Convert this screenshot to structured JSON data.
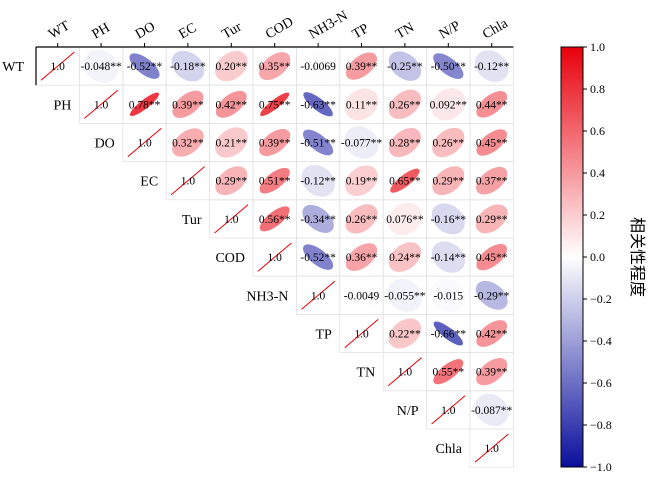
{
  "chart_data": {
    "type": "heatmap",
    "variables": [
      "WT",
      "PH",
      "DO",
      "EC",
      "Tur",
      "COD",
      "NH3-N",
      "TP",
      "TN",
      "N/P",
      "Chla"
    ],
    "matrix_upper": [
      [
        "1.0",
        "-0.048**",
        "-0.52**",
        "-0.18**",
        "0.20**",
        "0.35**",
        "-0.0069",
        "0.39**",
        "-0.25**",
        "-0.50**",
        "-0.12**"
      ],
      [
        "1.0",
        "0.78**",
        "0.39**",
        "0.42**",
        "0.75**",
        "-0.63**",
        "0.11**",
        "0.26**",
        "0.092**",
        "0.44**"
      ],
      [
        "1.0",
        "0.32**",
        "0.21**",
        "0.39**",
        "-0.51**",
        "-0.077**",
        "0.28**",
        "0.26**",
        "0.45**"
      ],
      [
        "1.0",
        "0.29**",
        "0.51**",
        "-0.12**",
        "0.19**",
        "0.65**",
        "0.29**",
        "0.37**"
      ],
      [
        "1.0",
        "0.56**",
        "-0.34**",
        "0.26**",
        "0.076**",
        "-0.16**",
        "0.29**"
      ],
      [
        "1.0",
        "-0.52**",
        "0.36**",
        "0.24**",
        "-0.14**",
        "0.45**"
      ],
      [
        "1.0",
        "-0.0049",
        "-0.055**",
        "-0.015",
        "-0.29**"
      ],
      [
        "1.0",
        "0.22**",
        "-0.66**",
        "0.42**"
      ],
      [
        "1.0",
        "0.55**",
        "0.39**"
      ],
      [
        "1.0",
        "-0.087**"
      ],
      [
        "1.0"
      ]
    ],
    "colorbar": {
      "label": "相关性程度",
      "range": [
        -1.0,
        1.0
      ],
      "ticks": [
        "1.0",
        "0.8",
        "0.6",
        "0.4",
        "0.2",
        "0.0",
        "−0.2",
        "−0.4",
        "−0.6",
        "−0.8",
        "−1.0"
      ],
      "colors": {
        "negative": "#0a0f9c",
        "zero": "#ffffff",
        "positive": "#e8000b"
      }
    }
  }
}
